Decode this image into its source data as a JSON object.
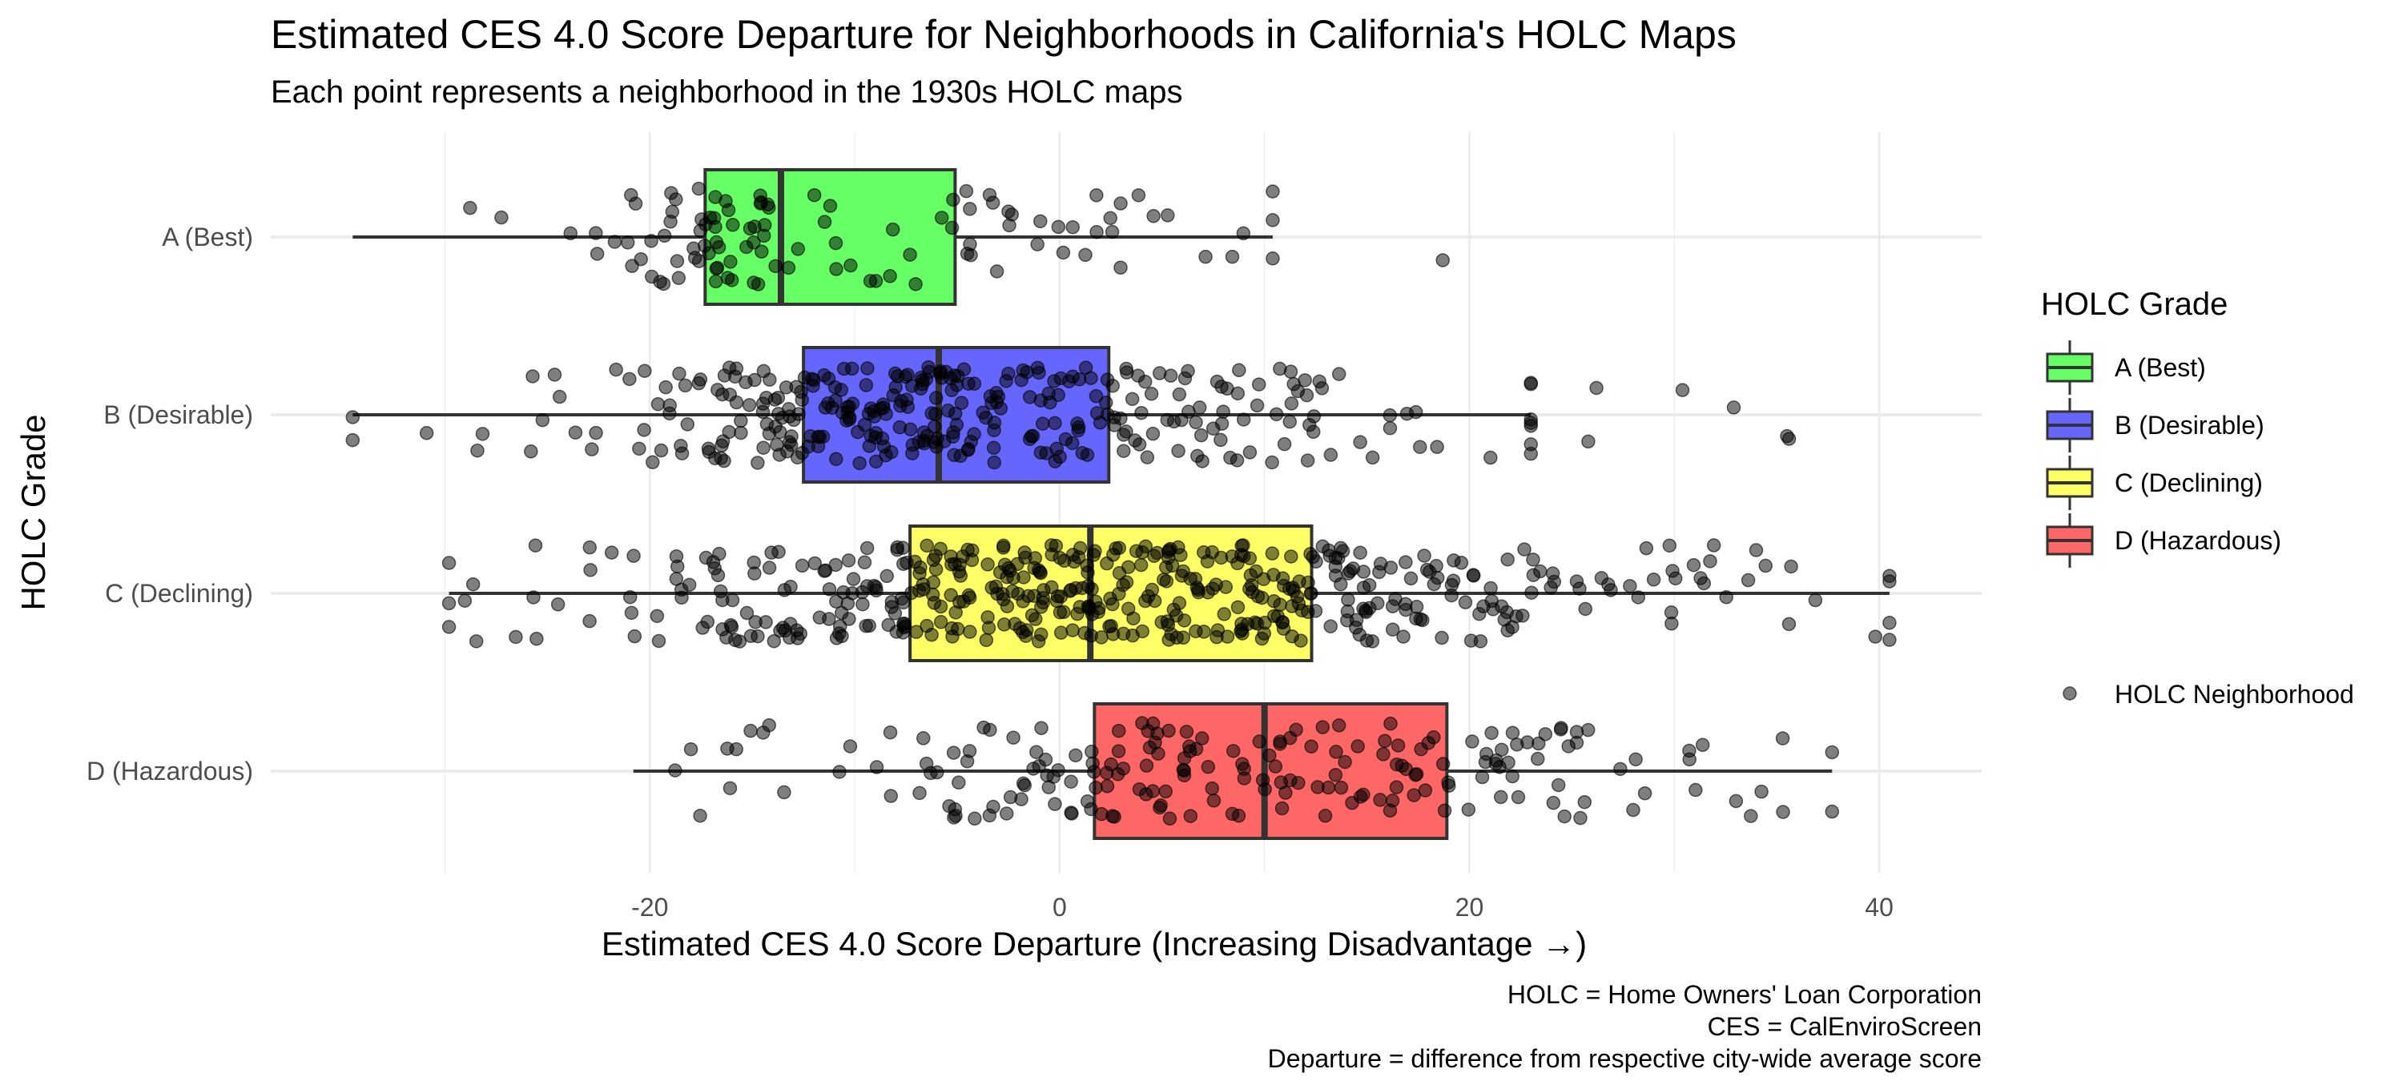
{
  "chart_data": {
    "type": "boxplot",
    "title": "Estimated CES 4.0 Score Departure for Neighborhoods in California's HOLC Maps",
    "subtitle": "Each point represents a neighborhood in the 1930s HOLC maps",
    "xlabel": "Estimated CES 4.0 Score Departure (Increasing Disadvantage →)",
    "ylabel": "HOLC Grade",
    "xlim": [
      -38.5,
      45
    ],
    "x_ticks": [
      -20,
      0,
      20,
      40
    ],
    "x_tick_labels": [
      "-20",
      "0",
      "20",
      "40"
    ],
    "grid": true,
    "legend_position": "right",
    "legend_title": "HOLC Grade",
    "points_legend_label": "HOLC Neighborhood",
    "caption": [
      "HOLC = Home Owners' Loan Corporation",
      "CES = CalEnviroScreen",
      "Departure = difference from respective city-wide average score"
    ],
    "categories": [
      "A (Best)",
      "B (Desirable)",
      "C (Declining)",
      "D (Hazardous)"
    ],
    "series": [
      {
        "name": "A (Best)",
        "color": "#66FF66",
        "whisker_low": -34.5,
        "q1": -17.3,
        "median": -13.6,
        "q3": -5.1,
        "whisker_high": 10.4,
        "outliers": [
          18.7
        ],
        "n_points": 110
      },
      {
        "name": "B (Desirable)",
        "color": "#6666FF",
        "whisker_low": -34.5,
        "q1": -12.5,
        "median": -5.9,
        "q3": 2.4,
        "whisker_high": 23.0,
        "outliers": [
          25.8,
          26.2,
          30.4,
          32.9,
          35.5,
          35.6
        ],
        "n_points": 330
      },
      {
        "name": "C (Declining)",
        "color": "#FFFF66",
        "whisker_low": -29.8,
        "q1": -7.3,
        "median": 1.5,
        "q3": 12.3,
        "whisker_high": 40.5,
        "outliers": [],
        "n_points": 480
      },
      {
        "name": "D (Hazardous)",
        "color": "#FF6666",
        "whisker_low": -20.8,
        "q1": 1.7,
        "median": 10.0,
        "q3": 18.9,
        "whisker_high": 37.7,
        "outliers": [],
        "n_points": 200
      }
    ]
  }
}
